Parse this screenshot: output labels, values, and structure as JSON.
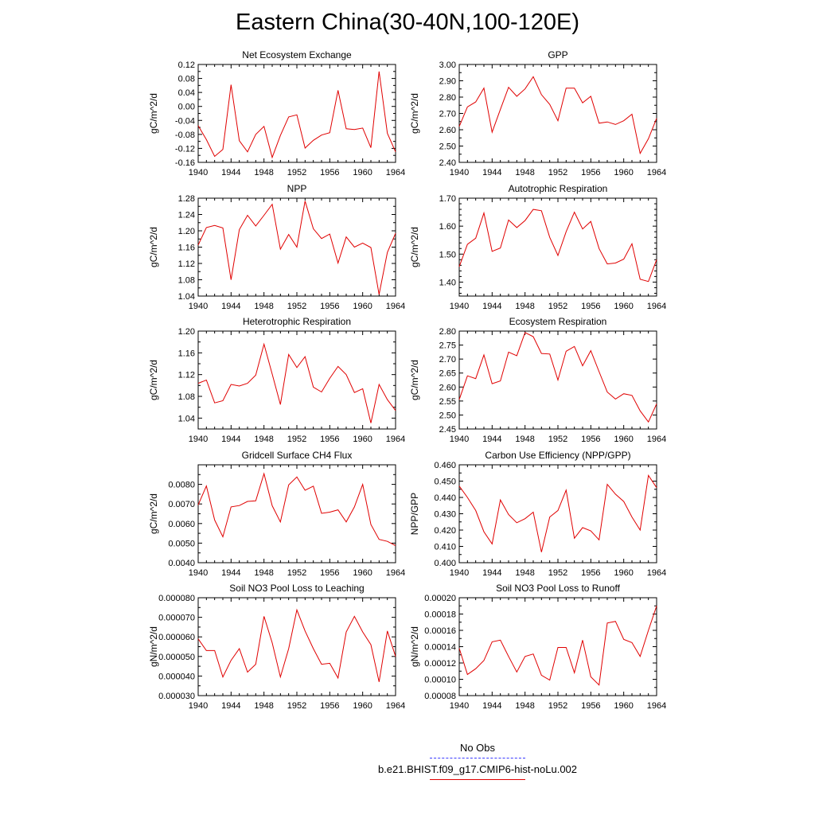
{
  "page": {
    "title": "Eastern China(30-40N,100-120E)"
  },
  "legend": {
    "entries": [
      {
        "label": "No Obs",
        "color": "#3b3bff",
        "style": "dashed"
      },
      {
        "label": "b.e21.BHIST.f09_g17.CMIP6-hist-noLu.002",
        "color": "#e00000",
        "style": "solid"
      }
    ]
  },
  "colors": {
    "line": "#e00000",
    "axis": "#000000"
  },
  "chart_data": [
    {
      "type": "line",
      "title": "Net Ecosystem Exchange",
      "ylabel": "gC/m^2/d",
      "x": [
        1940,
        1941,
        1942,
        1943,
        1944,
        1945,
        1946,
        1947,
        1948,
        1949,
        1950,
        1951,
        1952,
        1953,
        1954,
        1955,
        1956,
        1957,
        1958,
        1959,
        1960,
        1961,
        1962,
        1963,
        1964
      ],
      "values": [
        -0.055,
        -0.095,
        -0.143,
        -0.123,
        0.062,
        -0.098,
        -0.13,
        -0.08,
        -0.057,
        -0.146,
        -0.083,
        -0.03,
        -0.024,
        -0.119,
        -0.097,
        -0.082,
        -0.075,
        0.046,
        -0.064,
        -0.066,
        -0.062,
        -0.118,
        0.1,
        -0.077,
        -0.13
      ],
      "xlim": [
        1940,
        1964
      ],
      "ylim": [
        -0.16,
        0.12
      ],
      "xticks": [
        1940,
        1944,
        1948,
        1952,
        1956,
        1960,
        1964
      ],
      "yticks": [
        "-0.16",
        "-0.12",
        "-0.08",
        "-0.04",
        "0.00",
        "0.04",
        "0.08",
        "0.12"
      ],
      "yminor": 1
    },
    {
      "type": "line",
      "title": "GPP",
      "ylabel": "gC/m^2/d",
      "x": [
        1940,
        1941,
        1942,
        1943,
        1944,
        1945,
        1946,
        1947,
        1948,
        1949,
        1950,
        1951,
        1952,
        1953,
        1954,
        1955,
        1956,
        1957,
        1958,
        1959,
        1960,
        1961,
        1962,
        1963,
        1964
      ],
      "values": [
        2.62,
        2.74,
        2.77,
        2.855,
        2.585,
        2.725,
        2.86,
        2.805,
        2.85,
        2.925,
        2.815,
        2.755,
        2.655,
        2.855,
        2.855,
        2.765,
        2.805,
        2.64,
        2.648,
        2.632,
        2.655,
        2.695,
        2.455,
        2.545,
        2.67
      ],
      "xlim": [
        1940,
        1964
      ],
      "ylim": [
        2.4,
        3.0
      ],
      "xticks": [
        1940,
        1944,
        1948,
        1952,
        1956,
        1960,
        1964
      ],
      "yticks": [
        "2.40",
        "2.50",
        "2.60",
        "2.70",
        "2.80",
        "2.90",
        "3.00"
      ],
      "yminor": 1
    },
    {
      "type": "line",
      "title": "NPP",
      "ylabel": "gC/m^2/d",
      "x": [
        1940,
        1941,
        1942,
        1943,
        1944,
        1945,
        1946,
        1947,
        1948,
        1949,
        1950,
        1951,
        1952,
        1953,
        1954,
        1955,
        1956,
        1957,
        1958,
        1959,
        1960,
        1961,
        1962,
        1963,
        1964
      ],
      "values": [
        1.165,
        1.208,
        1.213,
        1.207,
        1.08,
        1.203,
        1.238,
        1.212,
        1.238,
        1.265,
        1.155,
        1.191,
        1.16,
        1.273,
        1.205,
        1.181,
        1.192,
        1.121,
        1.185,
        1.16,
        1.17,
        1.159,
        1.044,
        1.147,
        1.194
      ],
      "xlim": [
        1940,
        1964
      ],
      "ylim": [
        1.04,
        1.28
      ],
      "xticks": [
        1940,
        1944,
        1948,
        1952,
        1956,
        1960,
        1964
      ],
      "yticks": [
        "1.04",
        "1.08",
        "1.12",
        "1.16",
        "1.20",
        "1.24",
        "1.28"
      ],
      "yminor": 1
    },
    {
      "type": "line",
      "title": "Autotrophic Respiration",
      "ylabel": "gC/m^2/d",
      "x": [
        1940,
        1941,
        1942,
        1943,
        1944,
        1945,
        1946,
        1947,
        1948,
        1949,
        1950,
        1951,
        1952,
        1953,
        1954,
        1955,
        1956,
        1957,
        1958,
        1959,
        1960,
        1961,
        1962,
        1963,
        1964
      ],
      "values": [
        1.455,
        1.535,
        1.557,
        1.647,
        1.51,
        1.522,
        1.622,
        1.595,
        1.62,
        1.66,
        1.655,
        1.56,
        1.495,
        1.58,
        1.65,
        1.59,
        1.617,
        1.52,
        1.465,
        1.468,
        1.482,
        1.537,
        1.41,
        1.402,
        1.48
      ],
      "xlim": [
        1940,
        1964
      ],
      "ylim": [
        1.35,
        1.7
      ],
      "xticks": [
        1940,
        1944,
        1948,
        1952,
        1956,
        1960,
        1964
      ],
      "yticks": [
        "1.40",
        "1.50",
        "1.60",
        "1.70"
      ],
      "yminor": 4
    },
    {
      "type": "line",
      "title": "Heterotrophic Respiration",
      "ylabel": "gC/m^2/d",
      "x": [
        1940,
        1941,
        1942,
        1943,
        1944,
        1945,
        1946,
        1947,
        1948,
        1949,
        1950,
        1951,
        1952,
        1953,
        1954,
        1955,
        1956,
        1957,
        1958,
        1959,
        1960,
        1961,
        1962,
        1963,
        1964
      ],
      "values": [
        1.104,
        1.11,
        1.068,
        1.072,
        1.102,
        1.099,
        1.104,
        1.119,
        1.176,
        1.121,
        1.065,
        1.157,
        1.133,
        1.153,
        1.097,
        1.088,
        1.113,
        1.135,
        1.12,
        1.087,
        1.094,
        1.031,
        1.102,
        1.074,
        1.054
      ],
      "xlim": [
        1940,
        1964
      ],
      "ylim": [
        1.02,
        1.2
      ],
      "xticks": [
        1940,
        1944,
        1948,
        1952,
        1956,
        1960,
        1964
      ],
      "yticks": [
        "1.04",
        "1.08",
        "1.12",
        "1.16",
        "1.20"
      ],
      "yminor": 1
    },
    {
      "type": "line",
      "title": "Ecosystem Respiration",
      "ylabel": "gC/m^2/d",
      "x": [
        1940,
        1941,
        1942,
        1943,
        1944,
        1945,
        1946,
        1947,
        1948,
        1949,
        1950,
        1951,
        1952,
        1953,
        1954,
        1955,
        1956,
        1957,
        1958,
        1959,
        1960,
        1961,
        1962,
        1963,
        1964
      ],
      "values": [
        2.555,
        2.64,
        2.63,
        2.715,
        2.612,
        2.622,
        2.725,
        2.712,
        2.795,
        2.78,
        2.72,
        2.718,
        2.625,
        2.728,
        2.745,
        2.676,
        2.73,
        2.655,
        2.582,
        2.557,
        2.576,
        2.57,
        2.515,
        2.475,
        2.54
      ],
      "xlim": [
        1940,
        1964
      ],
      "ylim": [
        2.45,
        2.8
      ],
      "xticks": [
        1940,
        1944,
        1948,
        1952,
        1956,
        1960,
        1964
      ],
      "yticks": [
        "2.45",
        "2.50",
        "2.55",
        "2.60",
        "2.65",
        "2.70",
        "2.75",
        "2.80"
      ],
      "yminor": 0
    },
    {
      "type": "line",
      "title": "Gridcell Surface CH4 Flux",
      "ylabel": "gC/m^2/d",
      "x": [
        1940,
        1941,
        1942,
        1943,
        1944,
        1945,
        1946,
        1947,
        1948,
        1949,
        1950,
        1951,
        1952,
        1953,
        1954,
        1955,
        1956,
        1957,
        1958,
        1959,
        1960,
        1961,
        1962,
        1963,
        1964
      ],
      "values": [
        0.00695,
        0.00792,
        0.00618,
        0.00532,
        0.00685,
        0.00692,
        0.00713,
        0.00716,
        0.00855,
        0.00691,
        0.00608,
        0.00797,
        0.00838,
        0.0077,
        0.00791,
        0.00652,
        0.00658,
        0.0067,
        0.00608,
        0.00685,
        0.008,
        0.00595,
        0.00519,
        0.00509,
        0.00487
      ],
      "xlim": [
        1940,
        1964
      ],
      "ylim": [
        0.004,
        0.009
      ],
      "xticks": [
        1940,
        1944,
        1948,
        1952,
        1956,
        1960,
        1964
      ],
      "yticks": [
        "0.0040",
        "0.0050",
        "0.0060",
        "0.0070",
        "0.0080"
      ],
      "yminor": 1
    },
    {
      "type": "line",
      "title": "Carbon Use Efficiency (NPP/GPP)",
      "ylabel": "NPP/GPP",
      "x": [
        1940,
        1941,
        1942,
        1943,
        1944,
        1945,
        1946,
        1947,
        1948,
        1949,
        1950,
        1951,
        1952,
        1953,
        1954,
        1955,
        1956,
        1957,
        1958,
        1959,
        1960,
        1961,
        1962,
        1963,
        1964
      ],
      "values": [
        0.447,
        0.44,
        0.432,
        0.419,
        0.4115,
        0.4385,
        0.4295,
        0.4245,
        0.427,
        0.431,
        0.4065,
        0.428,
        0.432,
        0.4445,
        0.415,
        0.4215,
        0.4195,
        0.414,
        0.448,
        0.442,
        0.4375,
        0.428,
        0.42,
        0.4535,
        0.446
      ],
      "xlim": [
        1940,
        1964
      ],
      "ylim": [
        0.4,
        0.46
      ],
      "xticks": [
        1940,
        1944,
        1948,
        1952,
        1956,
        1960,
        1964
      ],
      "yticks": [
        "0.400",
        "0.410",
        "0.420",
        "0.430",
        "0.440",
        "0.450",
        "0.460"
      ],
      "yminor": 1
    },
    {
      "type": "line",
      "title": "Soil NO3 Pool Loss to Leaching",
      "ylabel": "gN/m^2/d",
      "x": [
        1940,
        1941,
        1942,
        1943,
        1944,
        1945,
        1946,
        1947,
        1948,
        1949,
        1950,
        1951,
        1952,
        1953,
        1954,
        1955,
        1956,
        1957,
        1958,
        1959,
        1960,
        1961,
        1962,
        1963,
        1964
      ],
      "values": [
        5.9e-05,
        5.3e-05,
        5.3e-05,
        3.95e-05,
        4.8e-05,
        5.4e-05,
        4.2e-05,
        4.6e-05,
        7.05e-05,
        5.7e-05,
        3.95e-05,
        5.4e-05,
        7.38e-05,
        6.3e-05,
        5.4e-05,
        4.6e-05,
        4.65e-05,
        3.9e-05,
        6.25e-05,
        7.05e-05,
        6.25e-05,
        5.6e-05,
        3.7e-05,
        6.3e-05,
        5e-05
      ],
      "xlim": [
        1940,
        1964
      ],
      "ylim": [
        3e-05,
        8e-05
      ],
      "xticks": [
        1940,
        1944,
        1948,
        1952,
        1956,
        1960,
        1964
      ],
      "yticks": [
        "0.000030",
        "0.000040",
        "0.000050",
        "0.000060",
        "0.000070",
        "0.000080"
      ],
      "yminor": 1
    },
    {
      "type": "line",
      "title": "Soil NO3 Pool Loss to Runoff",
      "ylabel": "gN/m^2/d",
      "x": [
        1940,
        1941,
        1942,
        1943,
        1944,
        1945,
        1946,
        1947,
        1948,
        1949,
        1950,
        1951,
        1952,
        1953,
        1954,
        1955,
        1956,
        1957,
        1958,
        1959,
        1960,
        1961,
        1962,
        1963,
        1964
      ],
      "values": [
        0.000138,
        0.000106,
        0.000113,
        0.000123,
        0.000146,
        0.000148,
        0.000128,
        0.000109,
        0.000128,
        0.000131,
        0.000105,
        9.9e-05,
        0.000139,
        0.000139,
        0.000108,
        0.000148,
        0.000103,
        9.3e-05,
        0.000169,
        0.000171,
        0.000149,
        0.000145,
        0.000128,
        0.00016,
        0.00019
      ],
      "xlim": [
        1940,
        1964
      ],
      "ylim": [
        8e-05,
        0.0002
      ],
      "xticks": [
        1940,
        1944,
        1948,
        1952,
        1956,
        1960,
        1964
      ],
      "yticks": [
        "0.00008",
        "0.00010",
        "0.00012",
        "0.00014",
        "0.00016",
        "0.00018",
        "0.00020"
      ],
      "yminor": 1
    }
  ]
}
